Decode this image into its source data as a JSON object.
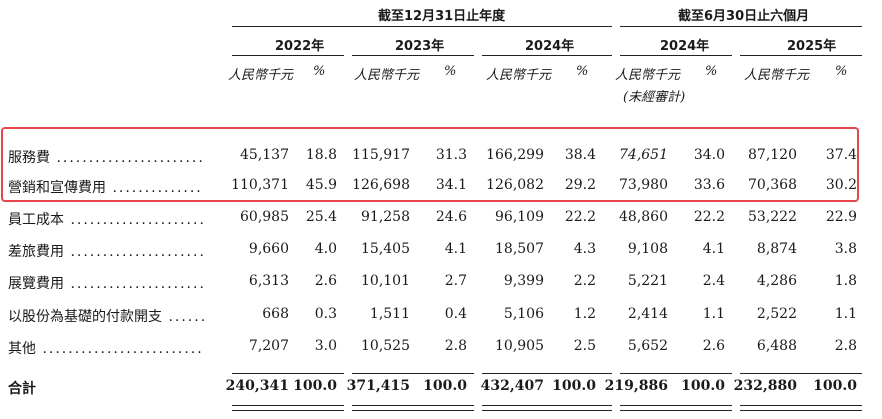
{
  "header": {
    "group_year": "截至12月31日止年度",
    "group_half": "截至6月30日止六個月",
    "years": [
      "2022年",
      "2023年",
      "2024年",
      "2024年",
      "2025年"
    ],
    "unit_amount": "人民幣千元",
    "unit_pct": "%",
    "unaudited": "(未經審計)"
  },
  "rows": [
    {
      "label": "服務費",
      "values": [
        "45,137",
        "18.8",
        "115,917",
        "31.3",
        "166,299",
        "38.4",
        "74,651",
        "34.0",
        "87,120",
        "37.4"
      ]
    },
    {
      "label": "營銷和宣傳費用",
      "values": [
        "110,371",
        "45.9",
        "126,698",
        "34.1",
        "126,082",
        "29.2",
        "73,980",
        "33.6",
        "70,368",
        "30.2"
      ]
    },
    {
      "label": "員工成本",
      "values": [
        "60,985",
        "25.4",
        "91,258",
        "24.6",
        "96,109",
        "22.2",
        "48,860",
        "22.2",
        "53,222",
        "22.9"
      ]
    },
    {
      "label": "差旅費用",
      "values": [
        "9,660",
        "4.0",
        "15,405",
        "4.1",
        "18,507",
        "4.3",
        "9,108",
        "4.1",
        "8,874",
        "3.8"
      ]
    },
    {
      "label": "展覽費用",
      "values": [
        "6,313",
        "2.6",
        "10,101",
        "2.7",
        "9,399",
        "2.2",
        "5,221",
        "2.4",
        "4,286",
        "1.8"
      ]
    },
    {
      "label": "以股份為基礎的付款開支",
      "values": [
        "668",
        "0.3",
        "1,511",
        "0.4",
        "5,106",
        "1.2",
        "2,414",
        "1.1",
        "2,522",
        "1.1"
      ]
    },
    {
      "label": "其他",
      "values": [
        "7,207",
        "3.0",
        "10,525",
        "2.8",
        "10,905",
        "2.5",
        "5,652",
        "2.6",
        "6,488",
        "2.8"
      ]
    }
  ],
  "total": {
    "label": "合計",
    "values": [
      "240,341",
      "100.0",
      "371,415",
      "100.0",
      "432,407",
      "100.0",
      "219,886",
      "100.0",
      "232,880",
      "100.0"
    ]
  },
  "highlight_color": "#e5474c"
}
